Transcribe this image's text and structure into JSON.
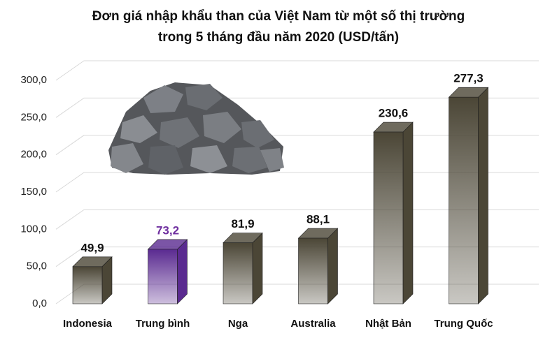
{
  "chart_data": {
    "type": "bar3d",
    "title_lines": [
      "Đơn giá nhập khẩu than của Việt Nam từ một số thị trường",
      "trong 5 tháng đầu năm 2020 (USD/tấn)"
    ],
    "categories": [
      "Indonesia",
      "Trung bình",
      "Nga",
      "Australia",
      "Nhật Bản",
      "Trung Quốc"
    ],
    "values": [
      49.9,
      73.2,
      81.9,
      88.1,
      230.6,
      277.3
    ],
    "value_labels": [
      "49,9",
      "73,2",
      "81,9",
      "88,1",
      "230,6",
      "277,3"
    ],
    "colors": [
      "#4b4636",
      "#5a2a90",
      "#4b4636",
      "#4b4636",
      "#4b4636",
      "#4b4636"
    ],
    "label_colors": [
      "#111111",
      "#7030a0",
      "#111111",
      "#111111",
      "#111111",
      "#111111"
    ],
    "ylim": [
      0,
      300
    ],
    "yticks": [
      {
        "value": 0,
        "label": "0,0"
      },
      {
        "value": 50,
        "label": "50,0"
      },
      {
        "value": 100,
        "label": "100,0"
      },
      {
        "value": 150,
        "label": "150,0"
      },
      {
        "value": 200,
        "label": "200,0"
      },
      {
        "value": 250,
        "label": "250,0"
      },
      {
        "value": 300,
        "label": "300,0"
      }
    ],
    "grid": true
  }
}
